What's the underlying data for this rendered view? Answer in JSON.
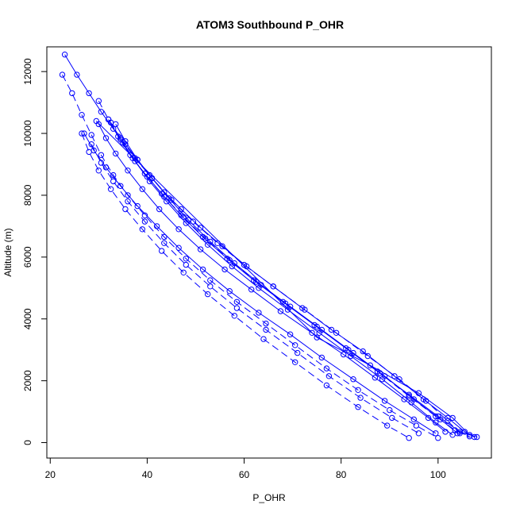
{
  "chart_data": {
    "type": "scatter",
    "title": "ATOM3 Southbound P_OHR",
    "xlabel": "P_OHR",
    "ylabel": "Altitude (m)",
    "xlim": [
      19.3,
      111.0
    ],
    "ylim": [
      -500,
      12800
    ],
    "xticks": [
      20,
      40,
      60,
      80,
      100
    ],
    "yticks": [
      0,
      2000,
      4000,
      6000,
      8000,
      10000,
      12000
    ],
    "grid": false,
    "legend": "none",
    "series_color": "#0000ff",
    "marker": "open-circle",
    "profiles": [
      {
        "line": "solid",
        "points": [
          [
            23.0,
            12550
          ],
          [
            25.5,
            11900
          ],
          [
            28.0,
            11300
          ],
          [
            30.5,
            10700
          ],
          [
            33.0,
            10150
          ],
          [
            35.5,
            9650
          ],
          [
            38.0,
            9150
          ],
          [
            40.5,
            8650
          ],
          [
            43.5,
            8100
          ],
          [
            47.0,
            7550
          ],
          [
            51.0,
            6950
          ],
          [
            55.5,
            6350
          ],
          [
            60.5,
            5700
          ],
          [
            66.0,
            5050
          ],
          [
            72.0,
            4350
          ],
          [
            78.0,
            3650
          ],
          [
            84.5,
            2950
          ],
          [
            91.0,
            2150
          ],
          [
            97.0,
            1400
          ],
          [
            102.0,
            800
          ],
          [
            105.5,
            350
          ],
          [
            107.5,
            180
          ]
        ]
      },
      {
        "line": "dashed",
        "points": [
          [
            22.5,
            11900
          ],
          [
            24.5,
            11300
          ],
          [
            26.5,
            10600
          ],
          [
            28.5,
            9950
          ],
          [
            30.5,
            9300
          ],
          [
            33.0,
            8650
          ],
          [
            36.0,
            8000
          ],
          [
            39.5,
            7350
          ],
          [
            43.5,
            6650
          ],
          [
            48.0,
            5950
          ],
          [
            53.0,
            5250
          ],
          [
            58.5,
            4550
          ],
          [
            64.5,
            3850
          ],
          [
            70.5,
            3150
          ],
          [
            77.0,
            2400
          ],
          [
            83.5,
            1700
          ],
          [
            90.0,
            1050
          ],
          [
            95.5,
            550
          ],
          [
            100.0,
            150
          ]
        ]
      },
      {
        "line": "solid",
        "points": [
          [
            30.0,
            10300
          ],
          [
            31.5,
            9850
          ],
          [
            33.5,
            9350
          ],
          [
            36.0,
            8800
          ],
          [
            39.0,
            8200
          ],
          [
            42.5,
            7550
          ],
          [
            46.5,
            6900
          ],
          [
            51.0,
            6250
          ],
          [
            56.0,
            5600
          ],
          [
            61.5,
            4950
          ],
          [
            67.5,
            4250
          ],
          [
            74.0,
            3550
          ],
          [
            80.5,
            2850
          ],
          [
            87.0,
            2100
          ],
          [
            93.0,
            1400
          ],
          [
            98.0,
            800
          ],
          [
            101.5,
            350
          ]
        ]
      },
      {
        "line": "dashed",
        "points": [
          [
            32.5,
            10350
          ],
          [
            34.5,
            9800
          ],
          [
            37.0,
            9200
          ],
          [
            40.0,
            8600
          ],
          [
            43.5,
            7950
          ],
          [
            47.5,
            7300
          ],
          [
            52.0,
            6600
          ],
          [
            57.0,
            5900
          ],
          [
            62.5,
            5200
          ],
          [
            68.5,
            4500
          ],
          [
            75.0,
            3750
          ],
          [
            81.5,
            3000
          ],
          [
            88.0,
            2250
          ],
          [
            94.0,
            1500
          ],
          [
            99.5,
            850
          ],
          [
            103.5,
            400
          ],
          [
            106.5,
            200
          ]
        ]
      },
      {
        "line": "solid",
        "points": [
          [
            27.0,
            10000
          ],
          [
            29.0,
            9450
          ],
          [
            31.5,
            8900
          ],
          [
            34.5,
            8300
          ],
          [
            38.0,
            7650
          ],
          [
            42.0,
            7000
          ],
          [
            46.5,
            6300
          ],
          [
            51.5,
            5600
          ],
          [
            57.0,
            4900
          ],
          [
            63.0,
            4200
          ],
          [
            69.5,
            3500
          ],
          [
            76.0,
            2750
          ],
          [
            82.5,
            2050
          ],
          [
            89.0,
            1350
          ],
          [
            95.0,
            750
          ],
          [
            99.5,
            300
          ]
        ]
      },
      {
        "line": "dashed",
        "points": [
          [
            30.0,
            11050
          ],
          [
            32.0,
            10450
          ],
          [
            34.5,
            9850
          ],
          [
            37.5,
            9200
          ],
          [
            41.0,
            8550
          ],
          [
            45.0,
            7850
          ],
          [
            49.5,
            7150
          ],
          [
            54.5,
            6450
          ],
          [
            60.0,
            5750
          ],
          [
            66.0,
            5050
          ],
          [
            72.5,
            4300
          ],
          [
            79.0,
            3550
          ],
          [
            85.5,
            2800
          ],
          [
            92.0,
            2050
          ],
          [
            97.5,
            1350
          ],
          [
            102.0,
            700
          ],
          [
            104.5,
            300
          ]
        ]
      },
      {
        "line": "solid",
        "points": [
          [
            35.0,
            9700
          ],
          [
            37.5,
            9100
          ],
          [
            40.5,
            8450
          ],
          [
            44.0,
            7800
          ],
          [
            48.0,
            7100
          ],
          [
            52.5,
            6400
          ],
          [
            57.5,
            5700
          ],
          [
            63.0,
            5000
          ],
          [
            69.0,
            4300
          ],
          [
            75.5,
            3550
          ],
          [
            82.0,
            2800
          ],
          [
            88.5,
            2050
          ],
          [
            94.5,
            1300
          ],
          [
            99.5,
            650
          ],
          [
            103.0,
            250
          ]
        ]
      },
      {
        "line": "dashed",
        "points": [
          [
            28.5,
            9650
          ],
          [
            30.5,
            9050
          ],
          [
            33.0,
            8450
          ],
          [
            36.0,
            7800
          ],
          [
            39.5,
            7150
          ],
          [
            43.5,
            6450
          ],
          [
            48.0,
            5750
          ],
          [
            53.0,
            5050
          ],
          [
            58.5,
            4350
          ],
          [
            64.5,
            3650
          ],
          [
            71.0,
            2900
          ],
          [
            77.5,
            2150
          ],
          [
            84.0,
            1450
          ],
          [
            90.5,
            800
          ],
          [
            96.0,
            300
          ]
        ]
      },
      {
        "line": "solid",
        "points": [
          [
            32.0,
            10450
          ],
          [
            34.0,
            9900
          ],
          [
            36.5,
            9300
          ],
          [
            39.5,
            8700
          ],
          [
            43.0,
            8050
          ],
          [
            47.0,
            7350
          ],
          [
            51.5,
            6650
          ],
          [
            56.5,
            5950
          ],
          [
            62.0,
            5250
          ],
          [
            68.0,
            4550
          ],
          [
            74.5,
            3800
          ],
          [
            81.0,
            3050
          ],
          [
            87.5,
            2300
          ],
          [
            94.0,
            1550
          ],
          [
            100.0,
            850
          ],
          [
            104.5,
            350
          ],
          [
            108.0,
            180
          ]
        ]
      },
      {
        "line": "dashed",
        "points": [
          [
            26.5,
            10000
          ],
          [
            28.0,
            9400
          ],
          [
            30.0,
            8800
          ],
          [
            32.5,
            8200
          ],
          [
            35.5,
            7550
          ],
          [
            39.0,
            6900
          ],
          [
            43.0,
            6200
          ],
          [
            47.5,
            5500
          ],
          [
            52.5,
            4800
          ],
          [
            58.0,
            4100
          ],
          [
            64.0,
            3350
          ],
          [
            70.5,
            2600
          ],
          [
            77.0,
            1850
          ],
          [
            83.5,
            1150
          ],
          [
            89.5,
            550
          ],
          [
            94.0,
            150
          ]
        ]
      },
      {
        "line": "solid",
        "points": [
          [
            33.5,
            10300
          ],
          [
            35.5,
            9750
          ],
          [
            38.0,
            9150
          ],
          [
            41.0,
            8550
          ],
          [
            44.5,
            7900
          ],
          [
            48.5,
            7200
          ],
          [
            53.0,
            6500
          ],
          [
            58.0,
            5800
          ],
          [
            63.5,
            5100
          ],
          [
            69.5,
            4400
          ],
          [
            76.0,
            3650
          ],
          [
            82.5,
            2900
          ],
          [
            89.0,
            2150
          ],
          [
            95.0,
            1400
          ],
          [
            100.5,
            750
          ],
          [
            104.0,
            300
          ]
        ]
      },
      {
        "line": "solid",
        "points": [
          [
            29.5,
            10400
          ],
          [
            75.0,
            3400
          ],
          [
            86.0,
            2500
          ],
          [
            96.0,
            1600
          ],
          [
            103.0,
            800
          ],
          [
            106.5,
            250
          ]
        ]
      }
    ]
  }
}
